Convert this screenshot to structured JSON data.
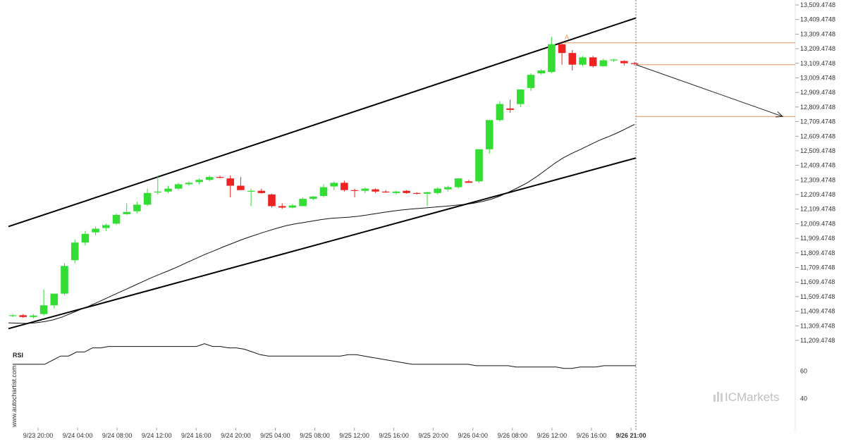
{
  "chart_data": {
    "type": "candlestick",
    "title": "",
    "y_axis": {
      "ticks": [
        "13,509.4748",
        "13,409.4748",
        "13,309.4748",
        "13,209.4748",
        "13,109.4748",
        "13,009.4748",
        "12,909.4748",
        "12,809.4748",
        "12,709.4748",
        "12,609.4748",
        "12,509.4748",
        "12,409.4748",
        "12,309.4748",
        "12,209.4748",
        "12,109.4748",
        "12,009.4748",
        "11,909.4748",
        "11,809.4748",
        "11,709.4748",
        "11,609.4748",
        "11,509.4748",
        "11,409.4748",
        "11,309.4748",
        "11,209.4748"
      ],
      "ylim": [
        11209.4748,
        13509.4748
      ]
    },
    "x_axis": {
      "ticks": [
        "9/23 20:00",
        "9/24 04:00",
        "9/24 08:00",
        "9/24 12:00",
        "9/24 16:00",
        "9/24 20:00",
        "9/25 04:00",
        "9/25 08:00",
        "9/25 12:00",
        "9/25 16:00",
        "9/25 20:00",
        "9/26 04:00",
        "9/26 08:00",
        "9/26 12:00",
        "9/26 16:00",
        "9/26 21:00"
      ],
      "highlight": "9/26 21:00"
    },
    "candles": [
      {
        "o": 11378,
        "h": 11390,
        "l": 11370,
        "c": 11382
      },
      {
        "o": 11382,
        "h": 11390,
        "l": 11364,
        "c": 11370
      },
      {
        "o": 11370,
        "h": 11390,
        "l": 11360,
        "c": 11380
      },
      {
        "o": 11390,
        "h": 11560,
        "l": 11380,
        "c": 11450
      },
      {
        "o": 11450,
        "h": 11520,
        "l": 11430,
        "c": 11530
      },
      {
        "o": 11530,
        "h": 11740,
        "l": 11520,
        "c": 11720
      },
      {
        "o": 11760,
        "h": 11900,
        "l": 11740,
        "c": 11880
      },
      {
        "o": 11880,
        "h": 11960,
        "l": 11860,
        "c": 11940
      },
      {
        "o": 11950,
        "h": 11990,
        "l": 11930,
        "c": 11975
      },
      {
        "o": 11980,
        "h": 12010,
        "l": 11960,
        "c": 12000
      },
      {
        "o": 12010,
        "h": 12080,
        "l": 12000,
        "c": 12070
      },
      {
        "o": 12075,
        "h": 12150,
        "l": 12070,
        "c": 12090
      },
      {
        "o": 12095,
        "h": 12160,
        "l": 12080,
        "c": 12140
      },
      {
        "o": 12140,
        "h": 12250,
        "l": 12130,
        "c": 12220
      },
      {
        "o": 12225,
        "h": 12340,
        "l": 12210,
        "c": 12230
      },
      {
        "o": 12230,
        "h": 12270,
        "l": 12220,
        "c": 12250
      },
      {
        "o": 12250,
        "h": 12290,
        "l": 12240,
        "c": 12280
      },
      {
        "o": 12280,
        "h": 12300,
        "l": 12270,
        "c": 12290
      },
      {
        "o": 12295,
        "h": 12320,
        "l": 12280,
        "c": 12310
      },
      {
        "o": 12310,
        "h": 12340,
        "l": 12300,
        "c": 12330
      },
      {
        "o": 12330,
        "h": 12340,
        "l": 12320,
        "c": 12325
      },
      {
        "o": 12320,
        "h": 12340,
        "l": 12190,
        "c": 12270
      },
      {
        "o": 12270,
        "h": 12330,
        "l": 12240,
        "c": 12240
      },
      {
        "o": 12230,
        "h": 12250,
        "l": 12130,
        "c": 12235
      },
      {
        "o": 12235,
        "h": 12250,
        "l": 12215,
        "c": 12220
      },
      {
        "o": 12210,
        "h": 12215,
        "l": 12120,
        "c": 12130
      },
      {
        "o": 12130,
        "h": 12150,
        "l": 12110,
        "c": 12120
      },
      {
        "o": 12120,
        "h": 12145,
        "l": 12115,
        "c": 12135
      },
      {
        "o": 12130,
        "h": 12190,
        "l": 12130,
        "c": 12180
      },
      {
        "o": 12180,
        "h": 12200,
        "l": 12170,
        "c": 12195
      },
      {
        "o": 12200,
        "h": 12280,
        "l": 12190,
        "c": 12260
      },
      {
        "o": 12265,
        "h": 12300,
        "l": 12240,
        "c": 12290
      },
      {
        "o": 12290,
        "h": 12305,
        "l": 12230,
        "c": 12240
      },
      {
        "o": 12240,
        "h": 12250,
        "l": 12190,
        "c": 12235
      },
      {
        "o": 12235,
        "h": 12260,
        "l": 12220,
        "c": 12250
      },
      {
        "o": 12245,
        "h": 12250,
        "l": 12220,
        "c": 12230
      },
      {
        "o": 12230,
        "h": 12240,
        "l": 12220,
        "c": 12225
      },
      {
        "o": 12220,
        "h": 12235,
        "l": 12210,
        "c": 12230
      },
      {
        "o": 12235,
        "h": 12240,
        "l": 12215,
        "c": 12220
      },
      {
        "o": 12220,
        "h": 12225,
        "l": 12210,
        "c": 12215
      },
      {
        "o": 12215,
        "h": 12230,
        "l": 12130,
        "c": 12225
      },
      {
        "o": 12220,
        "h": 12260,
        "l": 12210,
        "c": 12250
      },
      {
        "o": 12245,
        "h": 12270,
        "l": 12230,
        "c": 12260
      },
      {
        "o": 12260,
        "h": 12320,
        "l": 12250,
        "c": 12320
      },
      {
        "o": 12300,
        "h": 12310,
        "l": 12290,
        "c": 12290
      },
      {
        "o": 12300,
        "h": 12520,
        "l": 12290,
        "c": 12520
      },
      {
        "o": 12520,
        "h": 12720,
        "l": 12490,
        "c": 12720
      },
      {
        "o": 12720,
        "h": 12850,
        "l": 12710,
        "c": 12830
      },
      {
        "o": 12800,
        "h": 12860,
        "l": 12770,
        "c": 12790
      },
      {
        "o": 12830,
        "h": 12930,
        "l": 12810,
        "c": 12930
      },
      {
        "o": 12940,
        "h": 13040,
        "l": 12920,
        "c": 13030
      },
      {
        "o": 13040,
        "h": 13070,
        "l": 13030,
        "c": 13060
      },
      {
        "o": 13050,
        "h": 13290,
        "l": 13040,
        "c": 13240
      },
      {
        "o": 13240,
        "h": 13260,
        "l": 13100,
        "c": 13180
      },
      {
        "o": 13180,
        "h": 13200,
        "l": 13060,
        "c": 13100
      },
      {
        "o": 13100,
        "h": 13160,
        "l": 13090,
        "c": 13150
      },
      {
        "o": 13150,
        "h": 13160,
        "l": 13080,
        "c": 13090
      },
      {
        "o": 13090,
        "h": 13140,
        "l": 13085,
        "c": 13130
      },
      {
        "o": 13130,
        "h": 13140,
        "l": 13120,
        "c": 13135
      },
      {
        "o": 13125,
        "h": 13130,
        "l": 13095,
        "c": 13110
      },
      {
        "o": 13110,
        "h": 13120,
        "l": 13095,
        "c": 13105
      }
    ],
    "moving_average": [
      11330,
      11328,
      11326,
      11330,
      11338,
      11350,
      11370,
      11395,
      11420,
      11445,
      11472,
      11500,
      11528,
      11556,
      11584,
      11612,
      11640,
      11665,
      11690,
      11716,
      11745,
      11772,
      11800,
      11824,
      11850,
      11874,
      11898,
      11920,
      11940,
      11960,
      11978,
      11995,
      12008,
      12018,
      12028,
      12038,
      12046,
      12050,
      12054,
      12060,
      12068,
      12078,
      12088,
      12096,
      12104,
      12110,
      12115,
      12120,
      12125,
      12130,
      12136,
      12142,
      12150,
      12162,
      12178,
      12200,
      12228,
      12258,
      12290,
      12330,
      12374,
      12420,
      12460,
      12492,
      12520,
      12550,
      12580,
      12604,
      12630,
      12660,
      12690
    ],
    "channel": {
      "upper": {
        "from": 11990,
        "to": 13420
      },
      "lower": {
        "from": 11290,
        "to": 12460
      }
    },
    "levels": [
      13250,
      13100,
      12745
    ],
    "forecast_arrow": {
      "from": 13100,
      "to": 12745
    },
    "marker": {
      "label": "A",
      "value": 13275
    },
    "rsi": {
      "label": "RSI",
      "ticks": [
        "60",
        "40"
      ],
      "values": [
        65,
        65,
        65,
        65,
        65,
        68,
        71,
        71,
        74,
        74,
        77,
        77,
        78,
        78,
        78,
        78,
        78,
        78,
        78,
        78,
        78,
        78,
        78,
        78,
        80,
        78,
        78,
        77,
        77,
        76,
        74,
        72,
        71,
        71,
        71,
        71,
        71,
        71,
        71,
        71,
        71,
        71,
        72,
        72,
        71,
        70,
        69,
        68,
        67,
        66,
        65,
        65,
        65,
        65,
        65,
        65,
        65,
        65,
        64,
        64,
        64,
        64,
        64,
        63,
        63,
        63,
        63,
        63,
        63,
        62,
        62,
        63,
        63,
        63,
        64,
        64,
        64,
        64,
        64
      ]
    },
    "grid": false,
    "legend": "none"
  },
  "branding": {
    "side_watermark": "www.autochartist.com",
    "logo": "ICMarkets"
  }
}
